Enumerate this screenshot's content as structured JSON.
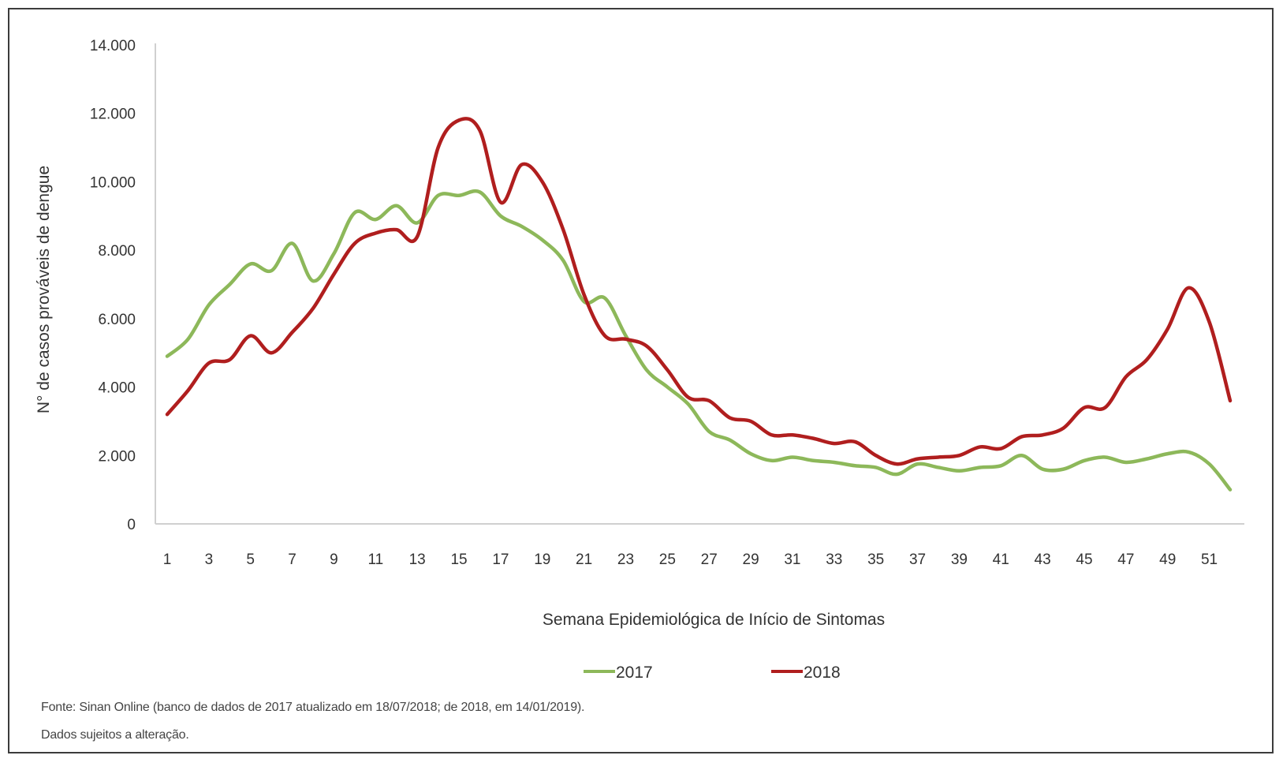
{
  "footnote": {
    "source": "Fonte: Sinan Online (banco de dados de 2017 atualizado em 18/07/2018; de 2018, em 14/01/2019).",
    "disclaimer": "Dados sujeitos a alteração."
  },
  "colors": {
    "series_2017": "#8db85a",
    "series_2018": "#b01e1e",
    "axis": "#d0d0d0"
  },
  "chart_data": {
    "type": "line",
    "title": "",
    "xlabel": "Semana Epidemiológica de Início de Sintomas",
    "ylabel": "N° de casos prováveis de dengue",
    "ylim": [
      0,
      14000
    ],
    "xlim": [
      1,
      52
    ],
    "yticks": [
      {
        "value": 0,
        "label": "0"
      },
      {
        "value": 2000,
        "label": "2.000"
      },
      {
        "value": 4000,
        "label": "4.000"
      },
      {
        "value": 6000,
        "label": "6.000"
      },
      {
        "value": 8000,
        "label": "8.000"
      },
      {
        "value": 10000,
        "label": "10.000"
      },
      {
        "value": 12000,
        "label": "12.000"
      },
      {
        "value": 14000,
        "label": "14.000"
      }
    ],
    "xticks": [
      {
        "value": 1,
        "label": "1"
      },
      {
        "value": 3,
        "label": "3"
      },
      {
        "value": 5,
        "label": "5"
      },
      {
        "value": 7,
        "label": "7"
      },
      {
        "value": 9,
        "label": "9"
      },
      {
        "value": 11,
        "label": "11"
      },
      {
        "value": 13,
        "label": "13"
      },
      {
        "value": 15,
        "label": "15"
      },
      {
        "value": 17,
        "label": "17"
      },
      {
        "value": 19,
        "label": "19"
      },
      {
        "value": 21,
        "label": "21"
      },
      {
        "value": 23,
        "label": "23"
      },
      {
        "value": 25,
        "label": "25"
      },
      {
        "value": 27,
        "label": "27"
      },
      {
        "value": 29,
        "label": "29"
      },
      {
        "value": 31,
        "label": "31"
      },
      {
        "value": 33,
        "label": "33"
      },
      {
        "value": 35,
        "label": "35"
      },
      {
        "value": 37,
        "label": "37"
      },
      {
        "value": 39,
        "label": "39"
      },
      {
        "value": 41,
        "label": "41"
      },
      {
        "value": 43,
        "label": "43"
      },
      {
        "value": 45,
        "label": "45"
      },
      {
        "value": 47,
        "label": "47"
      },
      {
        "value": 49,
        "label": "49"
      },
      {
        "value": 51,
        "label": "51"
      }
    ],
    "x": [
      1,
      2,
      3,
      4,
      5,
      6,
      7,
      8,
      9,
      10,
      11,
      12,
      13,
      14,
      15,
      16,
      17,
      18,
      19,
      20,
      21,
      22,
      23,
      24,
      25,
      26,
      27,
      28,
      29,
      30,
      31,
      32,
      33,
      34,
      35,
      36,
      37,
      38,
      39,
      40,
      41,
      42,
      43,
      44,
      45,
      46,
      47,
      48,
      49,
      50,
      51,
      52
    ],
    "series": [
      {
        "name": "2017",
        "color": "#8db85a",
        "values": [
          4900,
          5400,
          6400,
          7000,
          7600,
          7400,
          8200,
          7100,
          7900,
          9100,
          8900,
          9300,
          8800,
          9600,
          9600,
          9700,
          9000,
          8700,
          8300,
          7700,
          6500,
          6600,
          5500,
          4500,
          4000,
          3500,
          2700,
          2450,
          2050,
          1850,
          1950,
          1850,
          1800,
          1700,
          1650,
          1450,
          1750,
          1650,
          1550,
          1650,
          1700,
          2000,
          1600,
          1600,
          1850,
          1950,
          1800,
          1900,
          2050,
          2100,
          1750,
          1000
        ]
      },
      {
        "name": "2018",
        "color": "#b01e1e",
        "values": [
          3200,
          3900,
          4700,
          4800,
          5500,
          5000,
          5600,
          6300,
          7300,
          8200,
          8500,
          8600,
          8400,
          11000,
          11800,
          11500,
          9400,
          10500,
          10000,
          8600,
          6700,
          5500,
          5400,
          5200,
          4500,
          3700,
          3600,
          3100,
          3000,
          2600,
          2600,
          2500,
          2350,
          2400,
          2000,
          1750,
          1900,
          1950,
          2000,
          2250,
          2200,
          2550,
          2600,
          2800,
          3400,
          3400,
          4300,
          4800,
          5700,
          6900,
          5900,
          3600
        ]
      }
    ],
    "legend_position": "bottom-center",
    "grid": false
  }
}
